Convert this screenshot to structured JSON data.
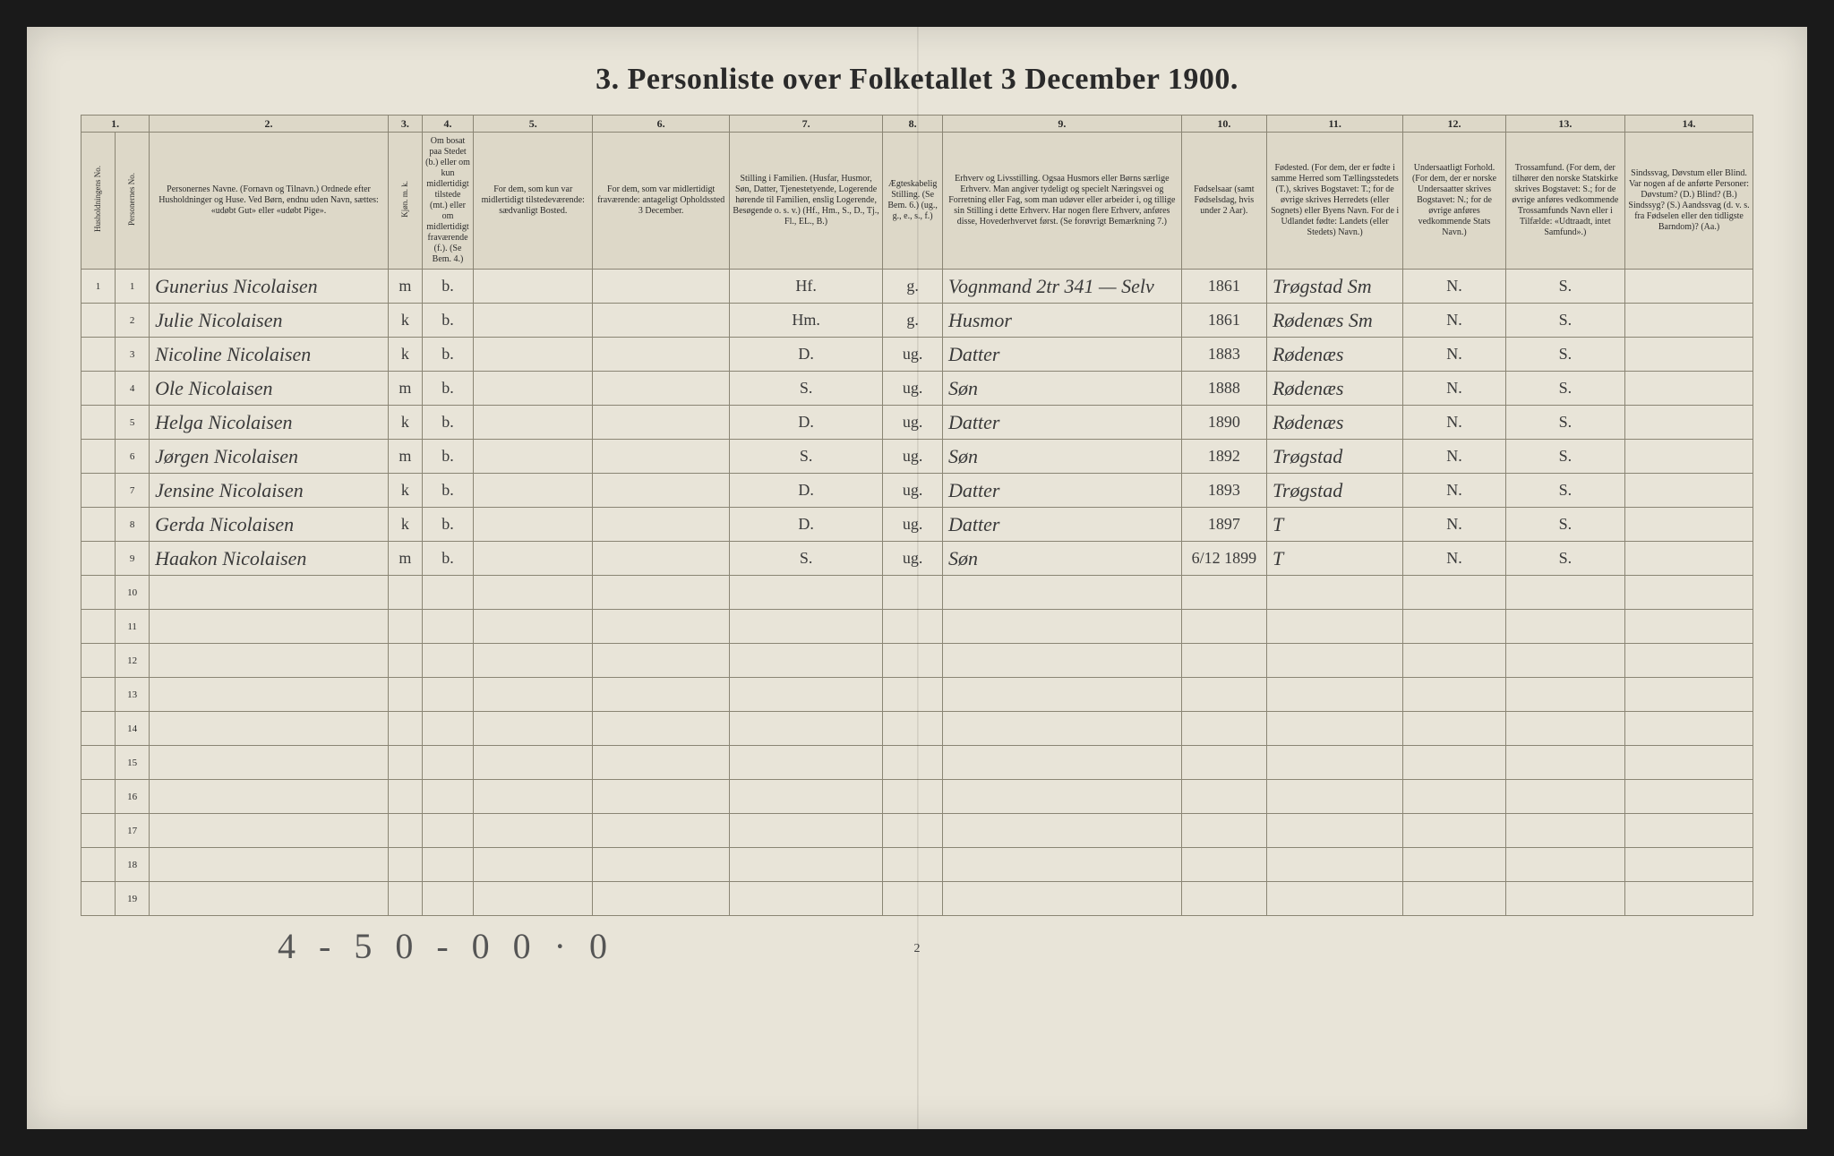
{
  "title": "3. Personliste over Folketallet 3 December 1900.",
  "column_numbers": [
    "1.",
    "",
    "2.",
    "3.",
    "4.",
    "5.",
    "6.",
    "7.",
    "8.",
    "9.",
    "10.",
    "11.",
    "12.",
    "13.",
    "14."
  ],
  "headers": {
    "hh": "Husholdningens No.",
    "pno": "Personernes No.",
    "name": "Personernes Navne.\n(Fornavn og Tilnavn.)\nOrdnede efter Husholdninger og Huse.\nVed Børn, endnu uden Navn, sættes: «udøbt Gut» eller «udøbt Pige».",
    "sex": "Kjøn.\nm. k.",
    "res": "Om bosat paa Stedet (b.) eller om kun midlertidigt tilstede (mt.) eller om midlertidigt fraværende (f.).\n(Se Bem. 4.)",
    "c5": "For dem, som kun var midlertidigt tilstedeværende:\nsædvanligt Bosted.",
    "c6": "For dem, som var midlertidigt fraværende:\nantageligt Opholdssted 3 December.",
    "c7": "Stilling i Familien.\n(Husfar, Husmor, Søn, Datter, Tjenestetyende, Logerende hørende til Familien, enslig Logerende, Besøgende o. s. v.)\n(Hf., Hm., S., D., Tj., Fl., EL., B.)",
    "c8": "Ægteskabelig Stilling.\n(Se Bem. 6.)\n(ug., g., e., s., f.)",
    "c9": "Erhverv og Livsstilling.\nOgsaa Husmors eller Børns særlige Erhverv. Man angiver tydeligt og specielt Næringsvei og Forretning eller Fag, som man udøver eller arbeider i, og tillige sin Stilling i dette Erhverv. Har nogen flere Erhverv, anføres disse, Hovederhvervet først.\n(Se forøvrigt Bemærkning 7.)",
    "c10": "Fødselsaar\n(samt Fødselsdag, hvis under 2 Aar).",
    "c11": "Fødested.\n(For dem, der er fødte i samme Herred som Tællingsstedets (T.), skrives Bogstavet: T.; for de øvrige skrives Herredets (eller Sognets) eller Byens Navn. For de i Udlandet fødte: Landets (eller Stedets) Navn.)",
    "c12": "Undersaatligt Forhold.\n(For dem, der er norske Undersaatter skrives Bogstavet: N.; for de øvrige anføres vedkommende Stats Navn.)",
    "c13": "Trossamfund.\n(For dem, der tilhører den norske Statskirke skrives Bogstavet: S.; for de øvrige anføres vedkommende Trossamfunds Navn eller i Tilfælde: «Udtraadt, intet Samfund».)",
    "c14": "Sindssvag, Døvstum eller Blind.\nVar nogen af de anførte Personer:\nDøvstum? (D.)\nBlind? (B.)\nSindssyg? (S.)\nAandssvag (d. v. s. fra Fødselen eller den tidligste Barndom)? (Aa.)"
  },
  "rows": [
    {
      "hh": "1",
      "no": "1",
      "name": "Gunerius Nicolaisen",
      "sex": "m",
      "res": "b.",
      "c7": "Hf.",
      "c8": "g.",
      "c9": "Vognmand     2tr 341 — Selv",
      "year": "1861",
      "place": "Trøgstad Sm",
      "nat": "N.",
      "rel": "S."
    },
    {
      "hh": "",
      "no": "2",
      "name": "Julie Nicolaisen",
      "sex": "k",
      "res": "b.",
      "c7": "Hm.",
      "c8": "g.",
      "c9": "Husmor",
      "year": "1861",
      "place": "Rødenæs Sm",
      "nat": "N.",
      "rel": "S."
    },
    {
      "hh": "",
      "no": "3",
      "name": "Nicoline Nicolaisen",
      "sex": "k",
      "res": "b.",
      "c7": "D.",
      "c8": "ug.",
      "c9": "Datter",
      "year": "1883",
      "place": "Rødenæs",
      "nat": "N.",
      "rel": "S."
    },
    {
      "hh": "",
      "no": "4",
      "name": "Ole Nicolaisen",
      "sex": "m",
      "res": "b.",
      "c7": "S.",
      "c8": "ug.",
      "c9": "Søn",
      "year": "1888",
      "place": "Rødenæs",
      "nat": "N.",
      "rel": "S."
    },
    {
      "hh": "",
      "no": "5",
      "name": "Helga Nicolaisen",
      "sex": "k",
      "res": "b.",
      "c7": "D.",
      "c8": "ug.",
      "c9": "Datter",
      "year": "1890",
      "place": "Rødenæs",
      "nat": "N.",
      "rel": "S."
    },
    {
      "hh": "",
      "no": "6",
      "name": "Jørgen Nicolaisen",
      "sex": "m",
      "res": "b.",
      "c7": "S.",
      "c8": "ug.",
      "c9": "Søn",
      "year": "1892",
      "place": "Trøgstad",
      "nat": "N.",
      "rel": "S."
    },
    {
      "hh": "",
      "no": "7",
      "name": "Jensine Nicolaisen",
      "sex": "k",
      "res": "b.",
      "c7": "D.",
      "c8": "ug.",
      "c9": "Datter",
      "year": "1893",
      "place": "Trøgstad",
      "nat": "N.",
      "rel": "S."
    },
    {
      "hh": "",
      "no": "8",
      "name": "Gerda Nicolaisen",
      "sex": "k",
      "res": "b.",
      "c7": "D.",
      "c8": "ug.",
      "c9": "Datter",
      "year": "1897",
      "place": "T",
      "nat": "N.",
      "rel": "S."
    },
    {
      "hh": "",
      "no": "9",
      "name": "Haakon Nicolaisen",
      "sex": "m",
      "res": "b.",
      "c7": "S.",
      "c8": "ug.",
      "c9": "Søn",
      "year": "6/12 1899",
      "place": "T",
      "nat": "N.",
      "rel": "S."
    }
  ],
  "empty_row_labels": [
    "10",
    "11",
    "12",
    "13",
    "14",
    "15",
    "16",
    "17",
    "18",
    "19"
  ],
  "footnote": "4 - 5 0 - 0 0 · 0",
  "page_number": "2",
  "colors": {
    "page_bg": "#e8e4d8",
    "border": "#8a8574",
    "header_bg": "#ddd8c8",
    "text": "#2a2a2a",
    "handwriting": "#3a3a3a"
  }
}
